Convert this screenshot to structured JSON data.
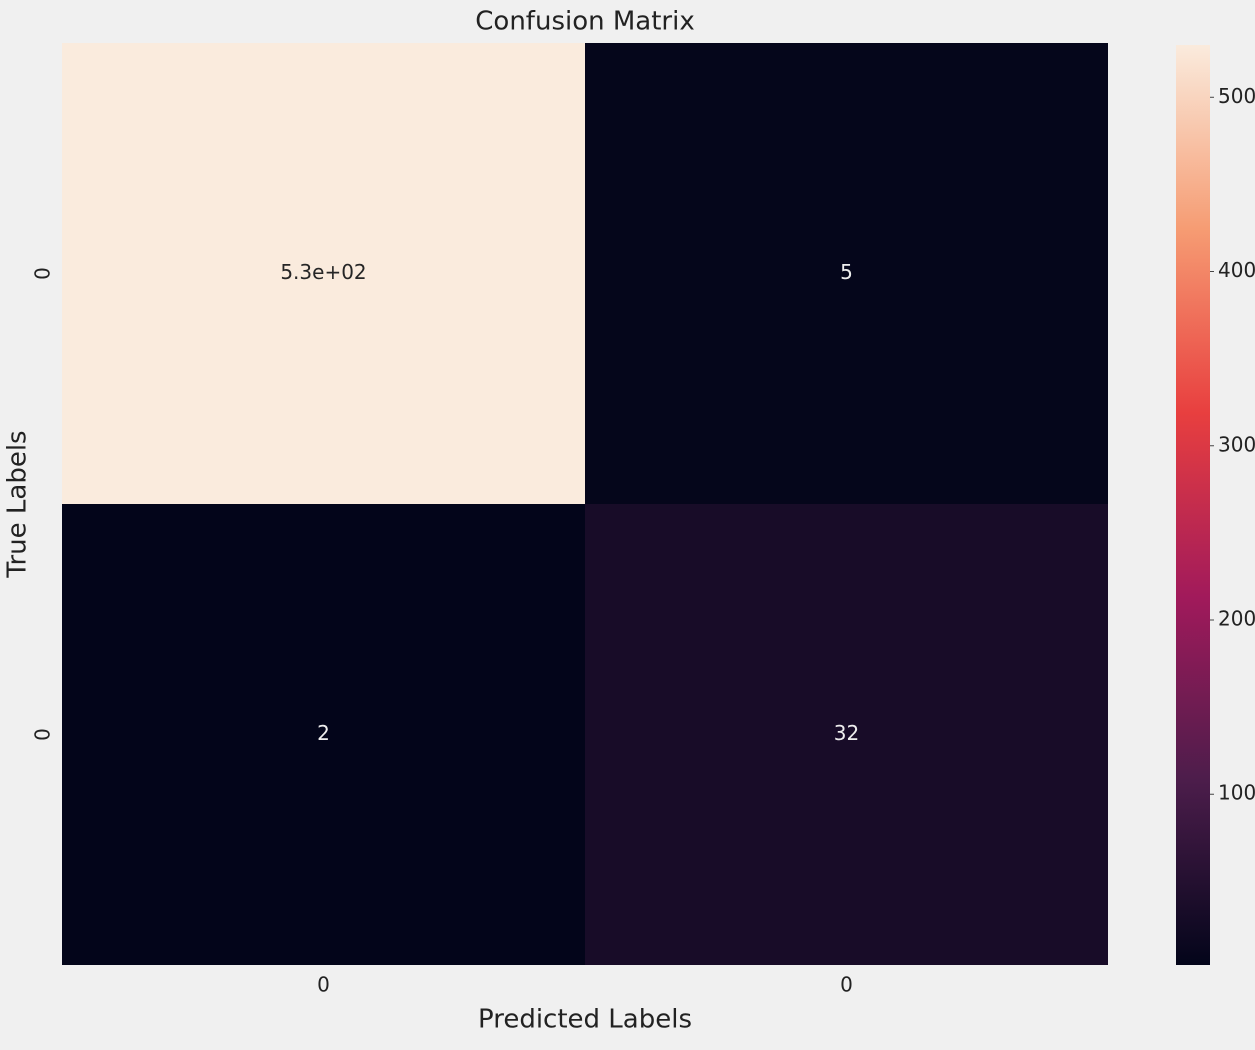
{
  "chart_data": {
    "type": "heatmap",
    "title": "Confusion Matrix",
    "xlabel": "Predicted Labels",
    "ylabel": "True Labels",
    "x_categories": [
      "0",
      "0"
    ],
    "y_categories": [
      "0",
      "0"
    ],
    "values": [
      [
        530,
        5
      ],
      [
        2,
        32
      ]
    ],
    "value_labels": [
      [
        "5.3e+02",
        "5"
      ],
      [
        "2",
        "32"
      ]
    ],
    "clim": [
      2,
      530
    ],
    "cticks": [
      100,
      200,
      300,
      400,
      500
    ],
    "colors": [
      "#03051a",
      "#4c1d4b",
      "#a11a5b",
      "#e83f3f",
      "#f69c73",
      "#faebdd"
    ]
  }
}
